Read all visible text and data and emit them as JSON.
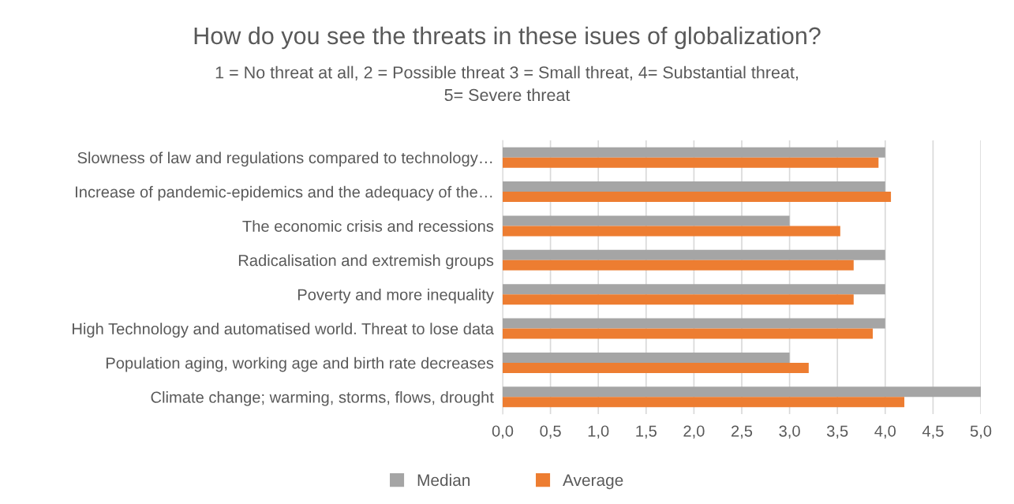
{
  "chart_data": {
    "type": "bar",
    "orientation": "horizontal",
    "title": "How do you see the threats in these isues of globalization?",
    "subtitle": "1 = No threat at all, 2 = Possible threat 3 = Small threat, 4= Substantial threat,\n5= Severe threat",
    "categories": [
      "Slowness of law and regulations compared to technology…",
      "Increase of pandemic-epidemics and the adequacy of the…",
      "The economic crisis and recessions",
      "Radicalisation and extremish groups",
      "Poverty and more inequality",
      "High Technology and automatised world. Threat to lose data",
      "Population aging, working age and birth rate decreases",
      "Climate change; warming, storms, flows, drought"
    ],
    "series": [
      {
        "name": "Median",
        "color": "#a5a5a5",
        "values": [
          4,
          4,
          3,
          4,
          4,
          4,
          3,
          5
        ]
      },
      {
        "name": "Average",
        "color": "#ed7d31",
        "values": [
          3.93,
          4.06,
          3.53,
          3.67,
          3.67,
          3.87,
          3.2,
          4.2
        ]
      }
    ],
    "xlim": [
      0,
      5
    ],
    "xticks": [
      {
        "value": 0,
        "label": "0,0"
      },
      {
        "value": 0.5,
        "label": "0,5"
      },
      {
        "value": 1,
        "label": "1,0"
      },
      {
        "value": 1.5,
        "label": "1,5"
      },
      {
        "value": 2,
        "label": "2,0"
      },
      {
        "value": 2.5,
        "label": "2,5"
      },
      {
        "value": 3,
        "label": "3,0"
      },
      {
        "value": 3.5,
        "label": "3,5"
      },
      {
        "value": 4,
        "label": "4,0"
      },
      {
        "value": 4.5,
        "label": "4,5"
      },
      {
        "value": 5,
        "label": "5,0"
      }
    ],
    "grid": "x",
    "legend": "bottom"
  }
}
